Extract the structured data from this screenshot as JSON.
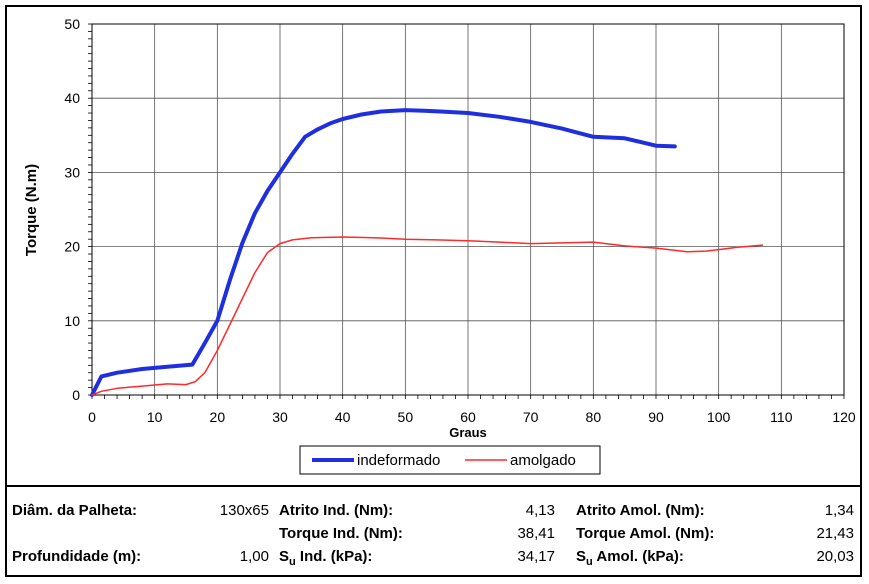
{
  "chart_data": {
    "type": "line",
    "title": "",
    "xlabel": "Graus",
    "ylabel": "Torque (N.m)",
    "xlim": [
      0,
      120
    ],
    "ylim": [
      0,
      50
    ],
    "x_ticks": [
      "0",
      "10",
      "20",
      "30",
      "40",
      "50",
      "60",
      "70",
      "80",
      "90",
      "100",
      "110",
      "120"
    ],
    "y_ticks": [
      "0",
      "10",
      "20",
      "30",
      "40",
      "50"
    ],
    "grid": true,
    "legend_position": "bottom",
    "series": [
      {
        "name": "indeformado",
        "color": "#1f2fe0",
        "x": [
          0,
          1.5,
          4,
          8,
          12,
          16,
          18,
          20,
          22,
          24,
          26,
          28,
          30,
          32,
          34,
          36,
          38,
          40,
          43,
          46,
          50,
          53,
          56,
          60,
          65,
          70,
          75,
          80,
          85,
          88,
          90,
          93
        ],
        "y": [
          0,
          2.5,
          3.0,
          3.5,
          3.8,
          4.1,
          7.0,
          10.0,
          15.5,
          20.5,
          24.5,
          27.5,
          30.0,
          32.5,
          34.8,
          35.8,
          36.6,
          37.2,
          37.8,
          38.2,
          38.4,
          38.3,
          38.2,
          38.0,
          37.5,
          36.8,
          35.9,
          34.8,
          34.6,
          34.0,
          33.6,
          33.5
        ]
      },
      {
        "name": "amolgado",
        "color": "#ff2a2a",
        "x": [
          0,
          1.5,
          4,
          8,
          12,
          15,
          16.5,
          18,
          20,
          22,
          24,
          26,
          28,
          30,
          32,
          35,
          40,
          45,
          50,
          55,
          60,
          65,
          70,
          75,
          80,
          85,
          90,
          95,
          98,
          100,
          103,
          107
        ],
        "y": [
          0,
          0.5,
          0.9,
          1.2,
          1.5,
          1.4,
          1.8,
          3.0,
          6.0,
          9.5,
          13.0,
          16.5,
          19.2,
          20.4,
          20.9,
          21.2,
          21.3,
          21.2,
          21.0,
          20.9,
          20.8,
          20.6,
          20.4,
          20.5,
          20.6,
          20.1,
          19.8,
          19.3,
          19.4,
          19.6,
          19.9,
          20.2
        ]
      }
    ]
  },
  "table": {
    "diam_label": "Diâm. da Palheta:",
    "diam_value": "130x65",
    "prof_label": "Profundidade (m):",
    "prof_value": "1,00",
    "atrito_ind_label": "Atrito Ind. (Nm):",
    "atrito_ind_value": "4,13",
    "torque_ind_label": "Torque Ind. (Nm):",
    "torque_ind_value": "38,41",
    "su_ind_label_s": "S",
    "su_ind_label_sub": "u",
    "su_ind_label_rest": " Ind. (kPa):",
    "su_ind_value": "34,17",
    "atrito_amol_label": "Atrito Amol. (Nm):",
    "atrito_amol_value": "1,34",
    "torque_amol_label": "Torque Amol. (Nm):",
    "torque_amol_value": "21,43",
    "su_amol_label_s": "S",
    "su_amol_label_sub": "u",
    "su_amol_label_rest": " Amol. (kPa):",
    "su_amol_value": "20,03"
  }
}
